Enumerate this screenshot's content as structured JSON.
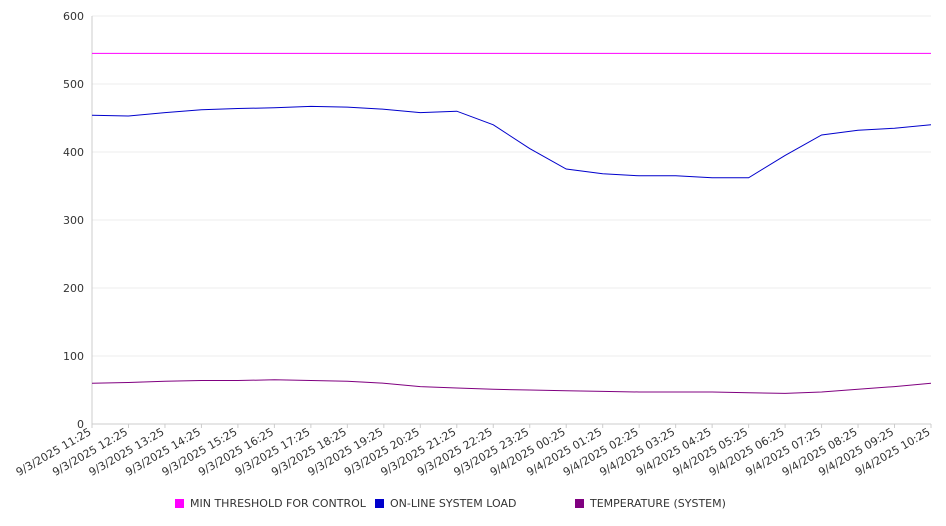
{
  "chart_data": {
    "type": "line",
    "title": "",
    "xlabel": "",
    "ylabel": "",
    "ylim": [
      0,
      600
    ],
    "y_ticks": [
      0,
      100,
      200,
      300,
      400,
      500,
      600
    ],
    "grid": "horizontal",
    "legend_position": "bottom",
    "x": [
      "9/3/2025 11:25",
      "9/3/2025 12:25",
      "9/3/2025 13:25",
      "9/3/2025 14:25",
      "9/3/2025 15:25",
      "9/3/2025 16:25",
      "9/3/2025 17:25",
      "9/3/2025 18:25",
      "9/3/2025 19:25",
      "9/3/2025 20:25",
      "9/3/2025 21:25",
      "9/3/2025 22:25",
      "9/3/2025 23:25",
      "9/4/2025 00:25",
      "9/4/2025 01:25",
      "9/4/2025 02:25",
      "9/4/2025 03:25",
      "9/4/2025 04:25",
      "9/4/2025 05:25",
      "9/4/2025 06:25",
      "9/4/2025 07:25",
      "9/4/2025 08:25",
      "9/4/2025 09:25",
      "9/4/2025 10:25"
    ],
    "series": [
      {
        "name": "MIN THRESHOLD FOR CONTROL",
        "color": "#ff00ff",
        "values": [
          545,
          545,
          545,
          545,
          545,
          545,
          545,
          545,
          545,
          545,
          545,
          545,
          545,
          545,
          545,
          545,
          545,
          545,
          545,
          545,
          545,
          545,
          545,
          545
        ]
      },
      {
        "name": "ON-LINE SYSTEM LOAD",
        "color": "#0000cc",
        "values": [
          454,
          453,
          458,
          462,
          464,
          465,
          467,
          466,
          463,
          458,
          460,
          440,
          405,
          375,
          368,
          365,
          365,
          362,
          362,
          395,
          425,
          432,
          435,
          440
        ]
      },
      {
        "name": "TEMPERATURE (SYSTEM)",
        "color": "#800080",
        "values": [
          60,
          61,
          63,
          64,
          64,
          65,
          64,
          63,
          60,
          55,
          53,
          51,
          50,
          49,
          48,
          47,
          47,
          47,
          46,
          45,
          47,
          51,
          55,
          60
        ]
      }
    ]
  }
}
